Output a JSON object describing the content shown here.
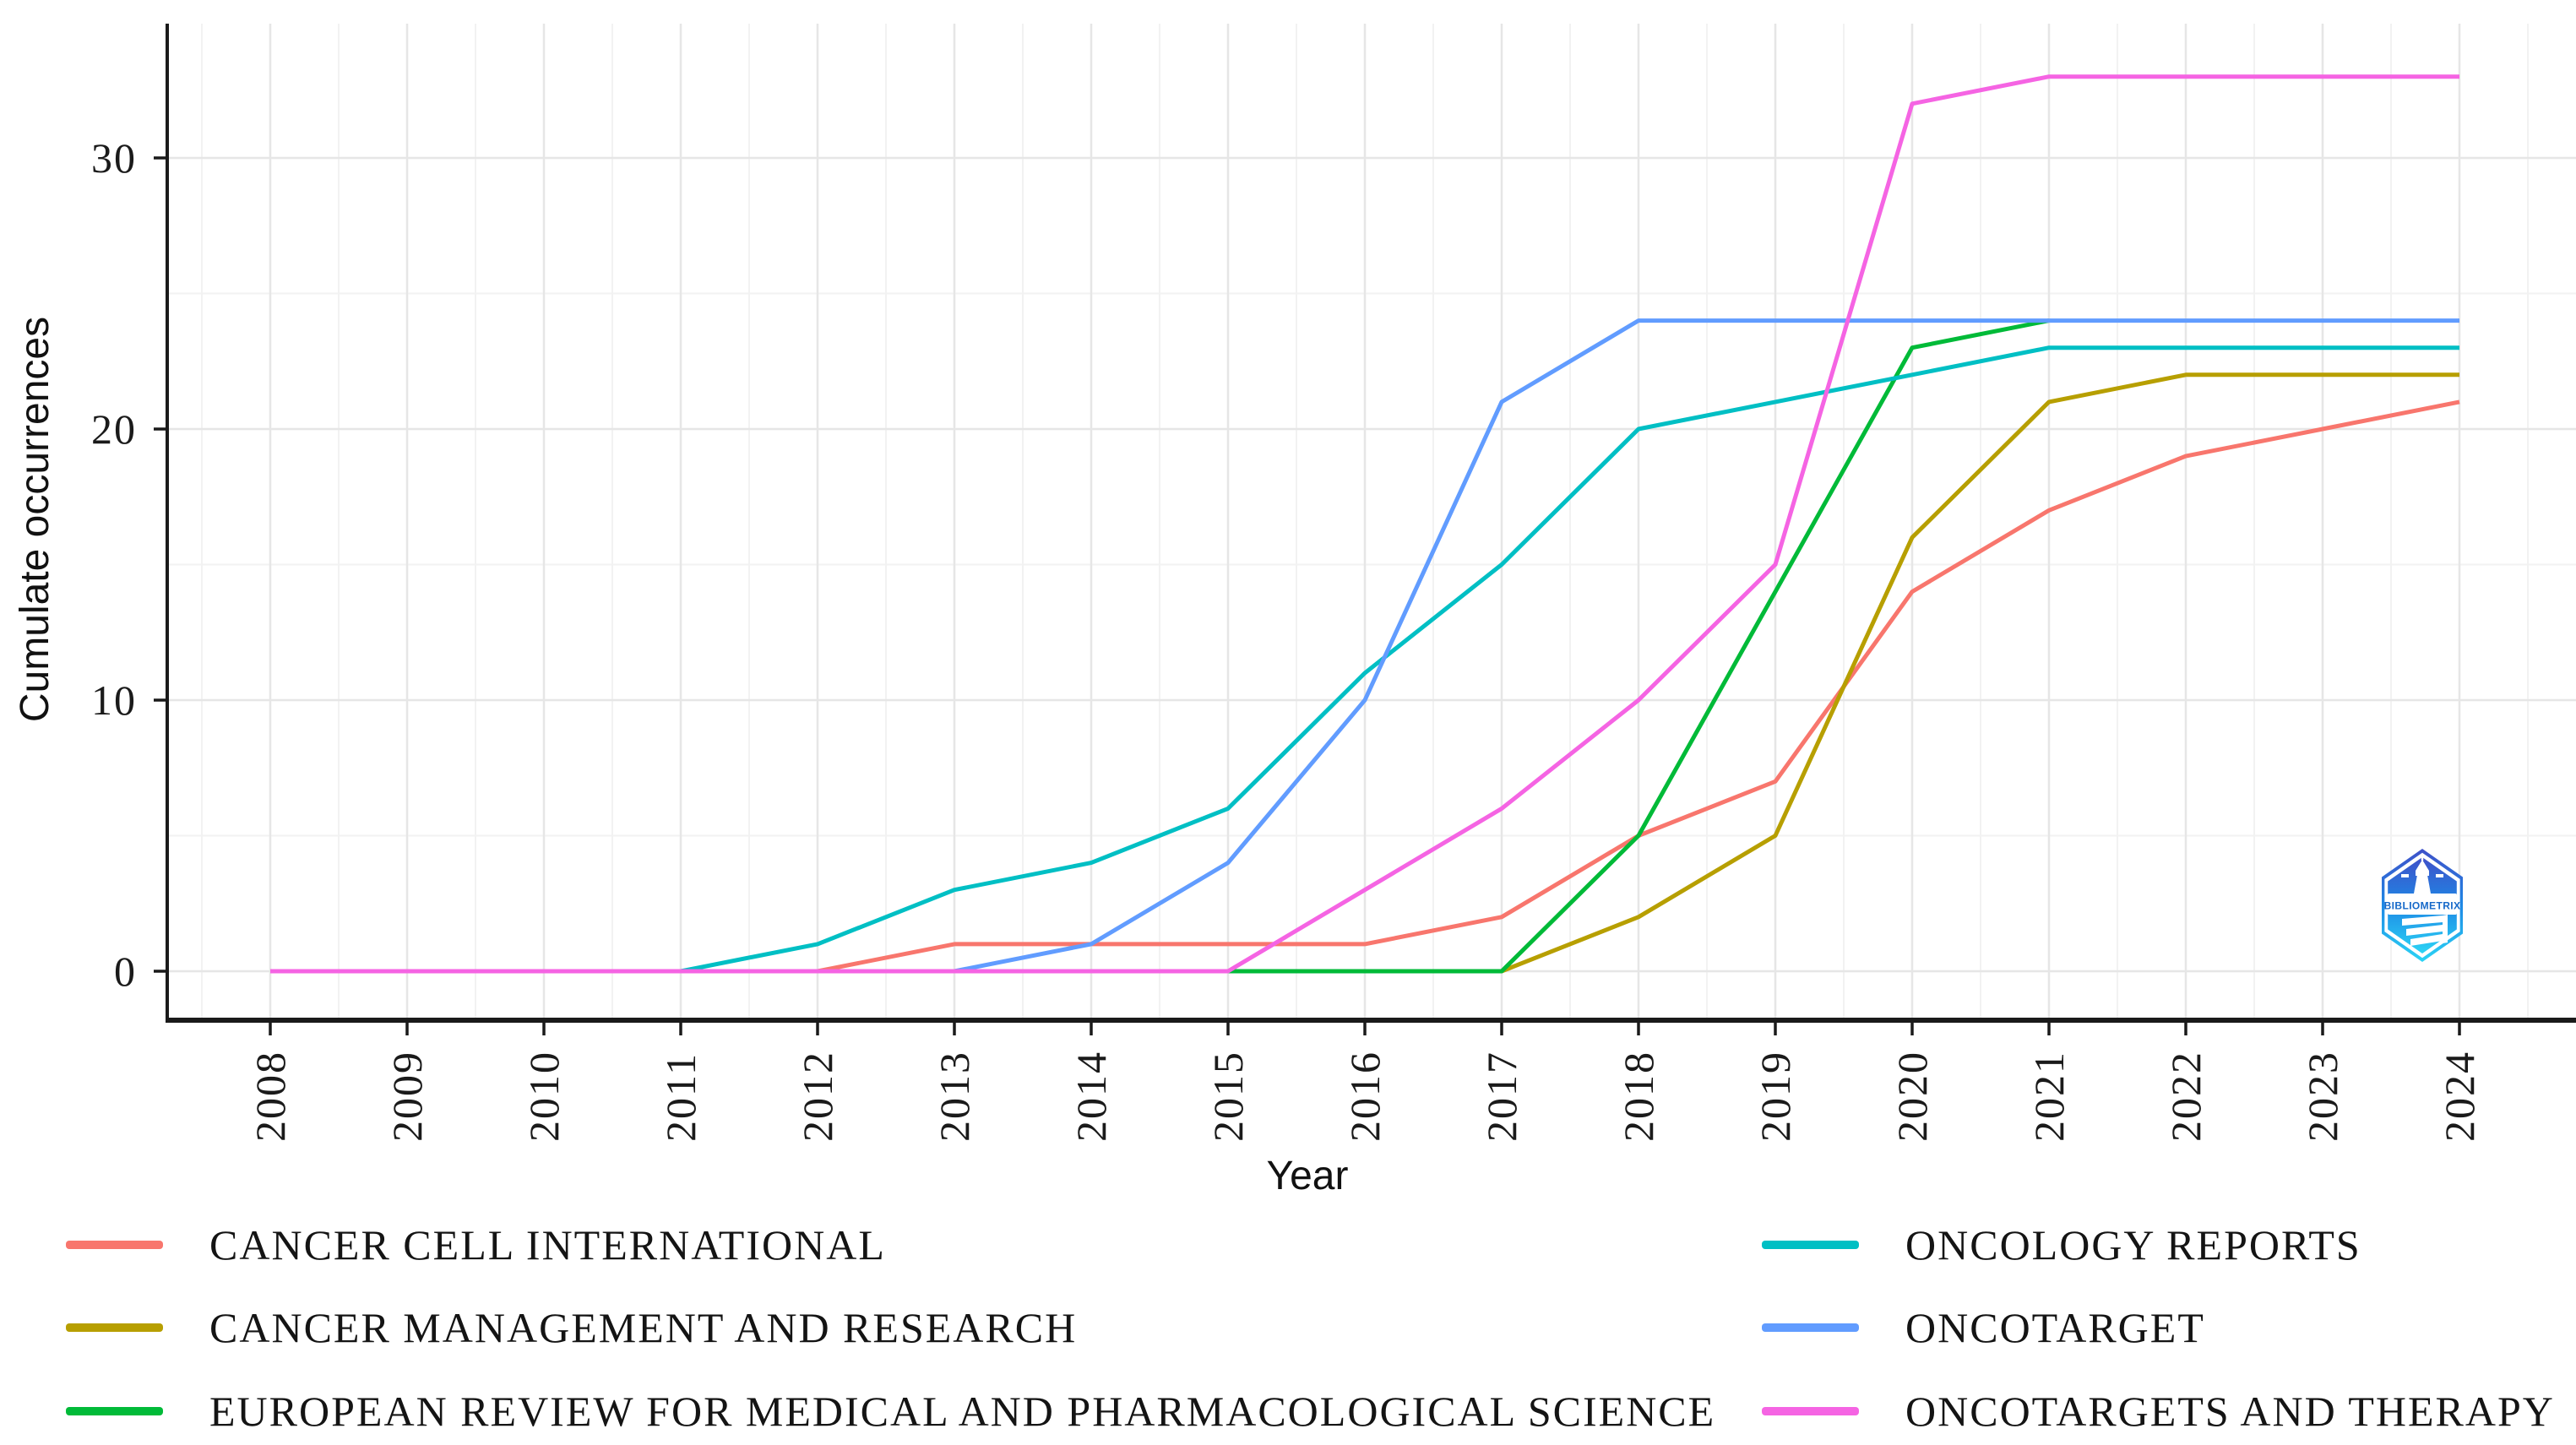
{
  "chart_data": {
    "type": "line",
    "title": "",
    "xlabel": "Year",
    "ylabel": "Cumulate occurrences",
    "x": [
      2008,
      2009,
      2010,
      2011,
      2012,
      2013,
      2014,
      2015,
      2016,
      2017,
      2018,
      2019,
      2020,
      2021,
      2022,
      2023,
      2024
    ],
    "y_ticks": [
      0,
      10,
      20,
      30
    ],
    "y_minor_ticks": [
      5,
      15,
      25
    ],
    "ylim": [
      0,
      34.5
    ],
    "grid": true,
    "tick_label_angle": 90,
    "legend_position": "bottom-two-columns",
    "series": [
      {
        "name": "CANCER CELL INTERNATIONAL",
        "color": "#F8766D",
        "values": [
          0,
          0,
          0,
          0,
          0,
          1,
          1,
          1,
          1,
          2,
          5,
          7,
          14,
          17,
          19,
          20,
          21
        ]
      },
      {
        "name": "CANCER MANAGEMENT AND RESEARCH",
        "color": "#B79F00",
        "values": [
          0,
          0,
          0,
          0,
          0,
          0,
          0,
          0,
          0,
          0,
          2,
          5,
          16,
          21,
          22,
          22,
          22
        ]
      },
      {
        "name": "EUROPEAN REVIEW FOR MEDICAL AND PHARMACOLOGICAL SCIENCE",
        "color": "#00BA38",
        "values": [
          0,
          0,
          0,
          0,
          0,
          0,
          0,
          0,
          0,
          0,
          5,
          14,
          23,
          24,
          null,
          null,
          null
        ]
      },
      {
        "name": "ONCOLOGY REPORTS",
        "color": "#00BFC4",
        "values": [
          0,
          0,
          0,
          0,
          1,
          3,
          4,
          6,
          11,
          15,
          20,
          21,
          22,
          23,
          23,
          23,
          23
        ]
      },
      {
        "name": "ONCOTARGET",
        "color": "#619CFF",
        "values": [
          0,
          0,
          0,
          0,
          0,
          0,
          1,
          4,
          10,
          21,
          24,
          24,
          24,
          24,
          24,
          24,
          24
        ]
      },
      {
        "name": "ONCOTARGETS AND THERAPY",
        "color": "#F564E3",
        "values": [
          0,
          0,
          0,
          0,
          0,
          0,
          0,
          0,
          3,
          6,
          10,
          15,
          32,
          33,
          33,
          33,
          33
        ]
      }
    ]
  },
  "logo": {
    "text": "BIBLIOMETRIX"
  }
}
